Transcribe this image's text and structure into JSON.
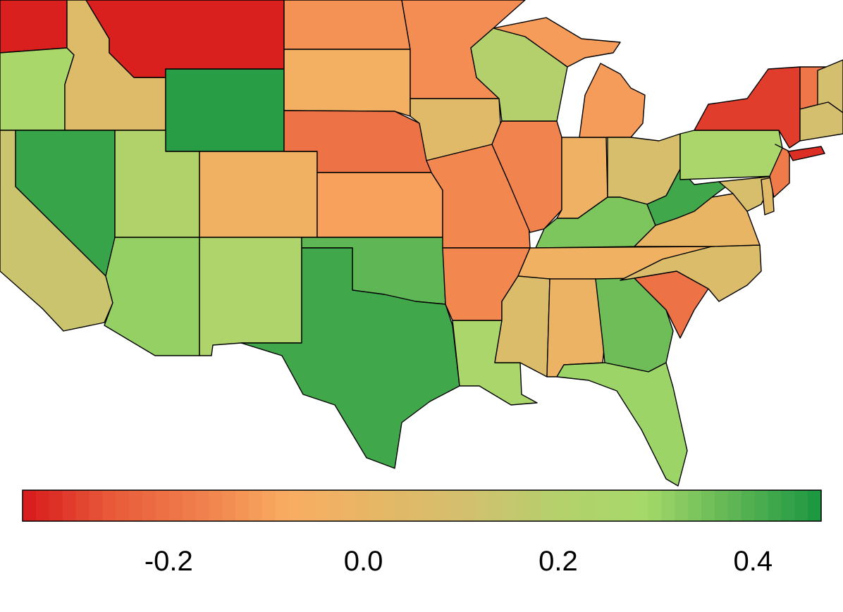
{
  "map": {
    "type": "choropleth",
    "region": "contiguous United States",
    "colorbar": {
      "orientation": "horizontal",
      "placement": "bottom",
      "range": [
        -0.35,
        0.47
      ],
      "ticks": [
        "-0.2",
        "0.0",
        "0.2",
        "0.4"
      ],
      "tick_values": [
        -0.2,
        0.0,
        0.2,
        0.4
      ],
      "colors": [
        "#d7191c",
        "#e85a3a",
        "#f07f4c",
        "#f9ad62",
        "#e5b765",
        "#d3c06f",
        "#b5d06c",
        "#a6d96a",
        "#5fb654",
        "#1a9641"
      ]
    },
    "states": [
      {
        "name": "OR",
        "value": 0.27
      },
      {
        "name": "ID",
        "value": 0.05
      },
      {
        "name": "MT",
        "value": -0.34
      },
      {
        "name": "WY",
        "value": 0.45
      },
      {
        "name": "NV",
        "value": 0.43
      },
      {
        "name": "CA",
        "value": 0.13
      },
      {
        "name": "UT",
        "value": 0.22
      },
      {
        "name": "AZ",
        "value": 0.31
      },
      {
        "name": "CO",
        "value": -0.04
      },
      {
        "name": "NM",
        "value": 0.24
      },
      {
        "name": "ND",
        "value": -0.13
      },
      {
        "name": "SD",
        "value": -0.05
      },
      {
        "name": "NE",
        "value": -0.2
      },
      {
        "name": "KS",
        "value": -0.1
      },
      {
        "name": "OK",
        "value": 0.38
      },
      {
        "name": "TX",
        "value": 0.42
      },
      {
        "name": "MN",
        "value": -0.14
      },
      {
        "name": "IA",
        "value": 0.04
      },
      {
        "name": "MO",
        "value": -0.15
      },
      {
        "name": "AR",
        "value": -0.15
      },
      {
        "name": "LA",
        "value": 0.26
      },
      {
        "name": "WI",
        "value": 0.2
      },
      {
        "name": "MI",
        "value": -0.11
      },
      {
        "name": "IL",
        "value": -0.16
      },
      {
        "name": "IN",
        "value": -0.03
      },
      {
        "name": "OH",
        "value": 0.09
      },
      {
        "name": "KY",
        "value": 0.34
      },
      {
        "name": "WV",
        "value": 0.42
      },
      {
        "name": "PA",
        "value": 0.26
      },
      {
        "name": "NY",
        "value": -0.3
      },
      {
        "name": "TN",
        "value": -0.04
      },
      {
        "name": "MS",
        "value": 0.07
      },
      {
        "name": "AL",
        "value": -0.02
      },
      {
        "name": "GA",
        "value": 0.36
      },
      {
        "name": "FL",
        "value": 0.3
      },
      {
        "name": "SC",
        "value": -0.2
      },
      {
        "name": "NC",
        "value": 0.07
      },
      {
        "name": "VA",
        "value": 0.0
      },
      {
        "name": "NJ",
        "value": -0.18
      },
      {
        "name": "MD",
        "value": 0.09
      },
      {
        "name": "DE",
        "value": 0.04
      },
      {
        "name": "CT",
        "value": -0.32
      },
      {
        "name": "VT",
        "value": -0.19
      },
      {
        "name": "NE-New-England",
        "value": 0.1
      }
    ]
  }
}
